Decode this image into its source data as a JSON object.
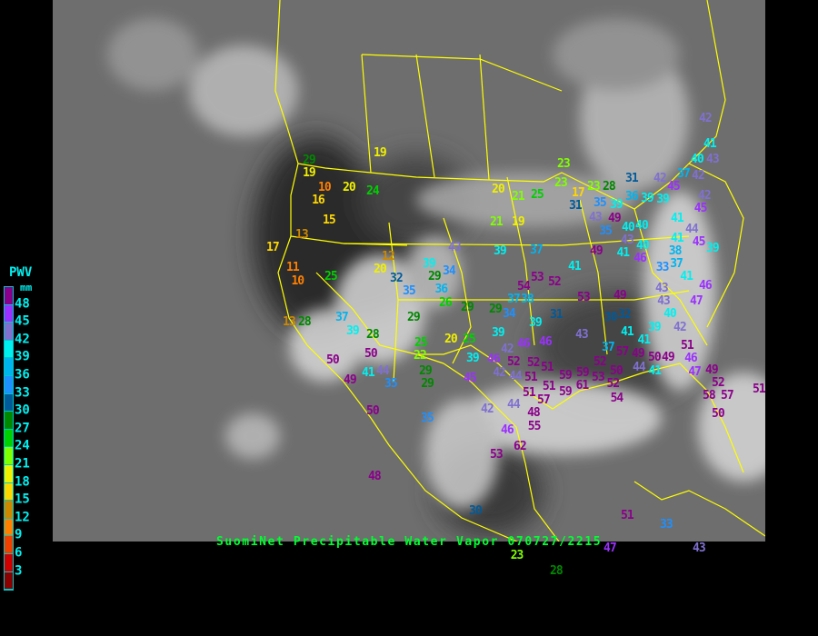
{
  "caption": "SuomiNet Precipitable Water Vapor 070727/2215",
  "legend": {
    "title": "PWV",
    "unit": "mm",
    "ticks": [
      "48",
      "45",
      "42",
      "39",
      "36",
      "33",
      "30",
      "27",
      "24",
      "21",
      "18",
      "15",
      "12",
      "9",
      "6",
      "3"
    ],
    "colors_top_to_bottom": [
      "#8b008b",
      "#9b30ff",
      "#8070d0",
      "#00f0f0",
      "#00b4f0",
      "#1e90ff",
      "#005a9a",
      "#008800",
      "#00d000",
      "#80ff00",
      "#f0f000",
      "#ffd700",
      "#cc8800",
      "#ff8000",
      "#f04000",
      "#d00000",
      "#8b0000"
    ]
  },
  "map": {
    "background": "#6e6e6e",
    "boundary_color": "#ffff00",
    "station_values": [
      29,
      19,
      10,
      20,
      24,
      16,
      15,
      13,
      17,
      11,
      10,
      19,
      25,
      12,
      20,
      32,
      35,
      39,
      29,
      34,
      36,
      26,
      29,
      13,
      28,
      37,
      39,
      28,
      29,
      25,
      22,
      20,
      25,
      43,
      39,
      37,
      53,
      52,
      54,
      37,
      38,
      29,
      34,
      39,
      39,
      31,
      42,
      46,
      46,
      46,
      52,
      39,
      45,
      42,
      44,
      51,
      51,
      57,
      44,
      48,
      55,
      42,
      46,
      53,
      62,
      35,
      30,
      50,
      50,
      50,
      49,
      41,
      44,
      35,
      29,
      29,
      20,
      21,
      25,
      21,
      19,
      23,
      23,
      17,
      23,
      28,
      31,
      35,
      39,
      31,
      36,
      43,
      49,
      40,
      35,
      43,
      40,
      49,
      41,
      41,
      40,
      46,
      42,
      45,
      39,
      39,
      37,
      42,
      41,
      40,
      43,
      42,
      42,
      45,
      41,
      44,
      41,
      38,
      37,
      33,
      41,
      45,
      39,
      46,
      47,
      53,
      49,
      43,
      43,
      40,
      39,
      42,
      30,
      32,
      43,
      37,
      41,
      41,
      49,
      50,
      51,
      49,
      46,
      47,
      49,
      52,
      58,
      57,
      50,
      51,
      52,
      50,
      59,
      53,
      52,
      54,
      59,
      61,
      51,
      52,
      59,
      51,
      57,
      44,
      41,
      51,
      33,
      47,
      43,
      28,
      23,
      48
    ]
  }
}
